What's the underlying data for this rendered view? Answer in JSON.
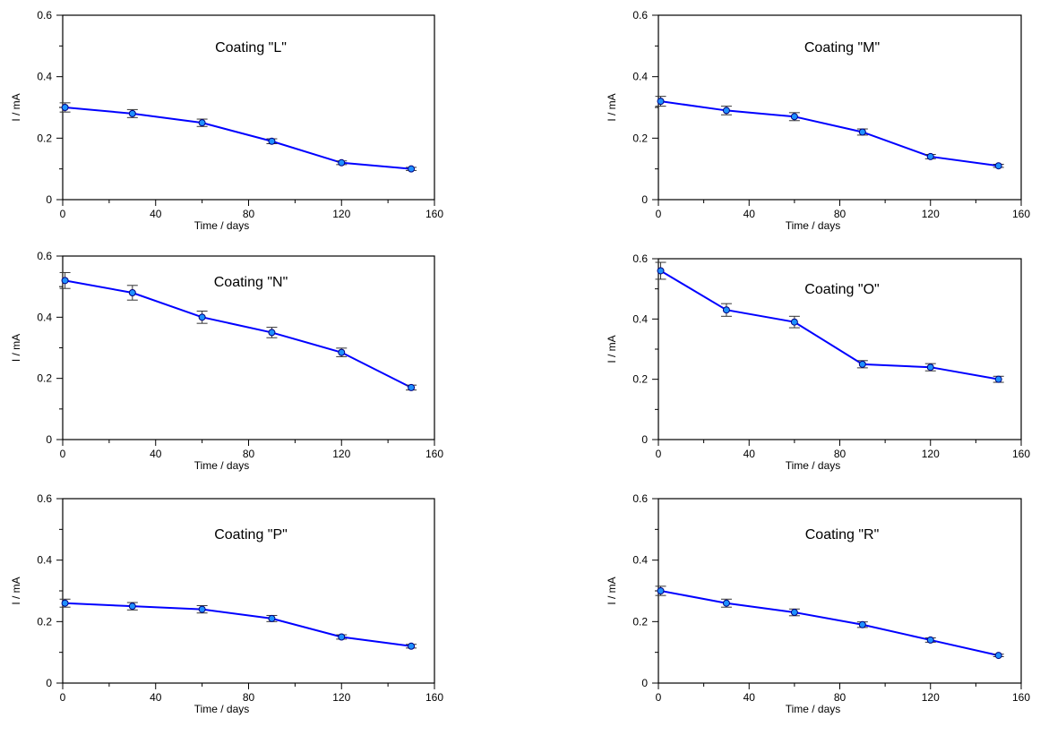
{
  "chart_data": [
    {
      "type": "line",
      "title": "Coating \"L\"",
      "xlabel": "Time / days",
      "ylabel": "I / mA",
      "xlim": [
        0,
        160
      ],
      "ylim": [
        0,
        0.6
      ],
      "xticks": [
        "0",
        "40",
        "80",
        "120",
        "160"
      ],
      "yticks": [
        "0",
        "0.2",
        "0.4",
        "0.6"
      ],
      "grid": false,
      "x": [
        1,
        30,
        60,
        90,
        120,
        150
      ],
      "values": [
        0.3,
        0.28,
        0.25,
        0.19,
        0.12,
        0.1
      ],
      "errors": [
        0.015,
        0.013,
        0.012,
        0.008,
        0.006,
        0.005
      ]
    },
    {
      "type": "line",
      "title": "Coating \"M\"",
      "xlabel": "Time / days",
      "ylabel": "I / mA",
      "xlim": [
        0,
        160
      ],
      "ylim": [
        0,
        0.6
      ],
      "xticks": [
        "0",
        "40",
        "80",
        "120",
        "160"
      ],
      "yticks": [
        "0",
        "0.2",
        "0.4",
        "0.6"
      ],
      "grid": false,
      "x": [
        1,
        30,
        60,
        90,
        120,
        150
      ],
      "values": [
        0.32,
        0.29,
        0.27,
        0.22,
        0.14,
        0.11
      ],
      "errors": [
        0.016,
        0.014,
        0.013,
        0.01,
        0.007,
        0.005
      ]
    },
    {
      "type": "line",
      "title": "Coating \"N\"",
      "xlabel": "Time / days",
      "ylabel": "I / mA",
      "xlim": [
        0,
        160
      ],
      "ylim": [
        0,
        0.6
      ],
      "xticks": [
        "0",
        "40",
        "80",
        "120",
        "160"
      ],
      "yticks": [
        "0",
        "0.2",
        "0.4",
        "0.6"
      ],
      "grid": false,
      "x": [
        1,
        30,
        60,
        90,
        120,
        150
      ],
      "values": [
        0.52,
        0.48,
        0.4,
        0.35,
        0.285,
        0.17
      ],
      "errors": [
        0.026,
        0.024,
        0.02,
        0.017,
        0.014,
        0.008
      ]
    },
    {
      "type": "line",
      "title": "Coating \"O\"",
      "xlabel": "Time / days",
      "ylabel": "I / mA",
      "xlim": [
        0,
        160
      ],
      "ylim": [
        0,
        0.6
      ],
      "xticks": [
        "0",
        "40",
        "80",
        "120",
        "160"
      ],
      "yticks": [
        "0",
        "0.2",
        "0.4",
        "0.6"
      ],
      "grid": false,
      "x": [
        1,
        30,
        60,
        90,
        120,
        150
      ],
      "values": [
        0.56,
        0.43,
        0.39,
        0.25,
        0.24,
        0.2
      ],
      "errors": [
        0.028,
        0.021,
        0.019,
        0.012,
        0.012,
        0.01
      ]
    },
    {
      "type": "line",
      "title": "Coating \"P\"",
      "xlabel": "Time / days",
      "ylabel": "I / mA",
      "xlim": [
        0,
        160
      ],
      "ylim": [
        0,
        0.6
      ],
      "xticks": [
        "0",
        "40",
        "80",
        "120",
        "160"
      ],
      "yticks": [
        "0",
        "0.2",
        "0.4",
        "0.6"
      ],
      "grid": false,
      "x": [
        1,
        30,
        60,
        90,
        120,
        150
      ],
      "values": [
        0.26,
        0.25,
        0.24,
        0.21,
        0.15,
        0.12
      ],
      "errors": [
        0.013,
        0.012,
        0.012,
        0.01,
        0.007,
        0.006
      ]
    },
    {
      "type": "line",
      "title": "Coating \"R\"",
      "xlabel": "Time / days",
      "ylabel": "I / mA",
      "xlim": [
        0,
        160
      ],
      "ylim": [
        0,
        0.6
      ],
      "xticks": [
        "0",
        "40",
        "80",
        "120",
        "160"
      ],
      "yticks": [
        "0",
        "0.2",
        "0.4",
        "0.6"
      ],
      "grid": false,
      "x": [
        1,
        30,
        60,
        90,
        120,
        150
      ],
      "values": [
        0.3,
        0.26,
        0.23,
        0.19,
        0.14,
        0.09
      ],
      "errors": [
        0.015,
        0.013,
        0.011,
        0.009,
        0.007,
        0.004
      ]
    }
  ],
  "colors": {
    "line": "#0000ff",
    "marker_fill": "#1e90ff",
    "marker_edge": "#000080",
    "error_bar": "#333333",
    "axes": "#000000"
  }
}
